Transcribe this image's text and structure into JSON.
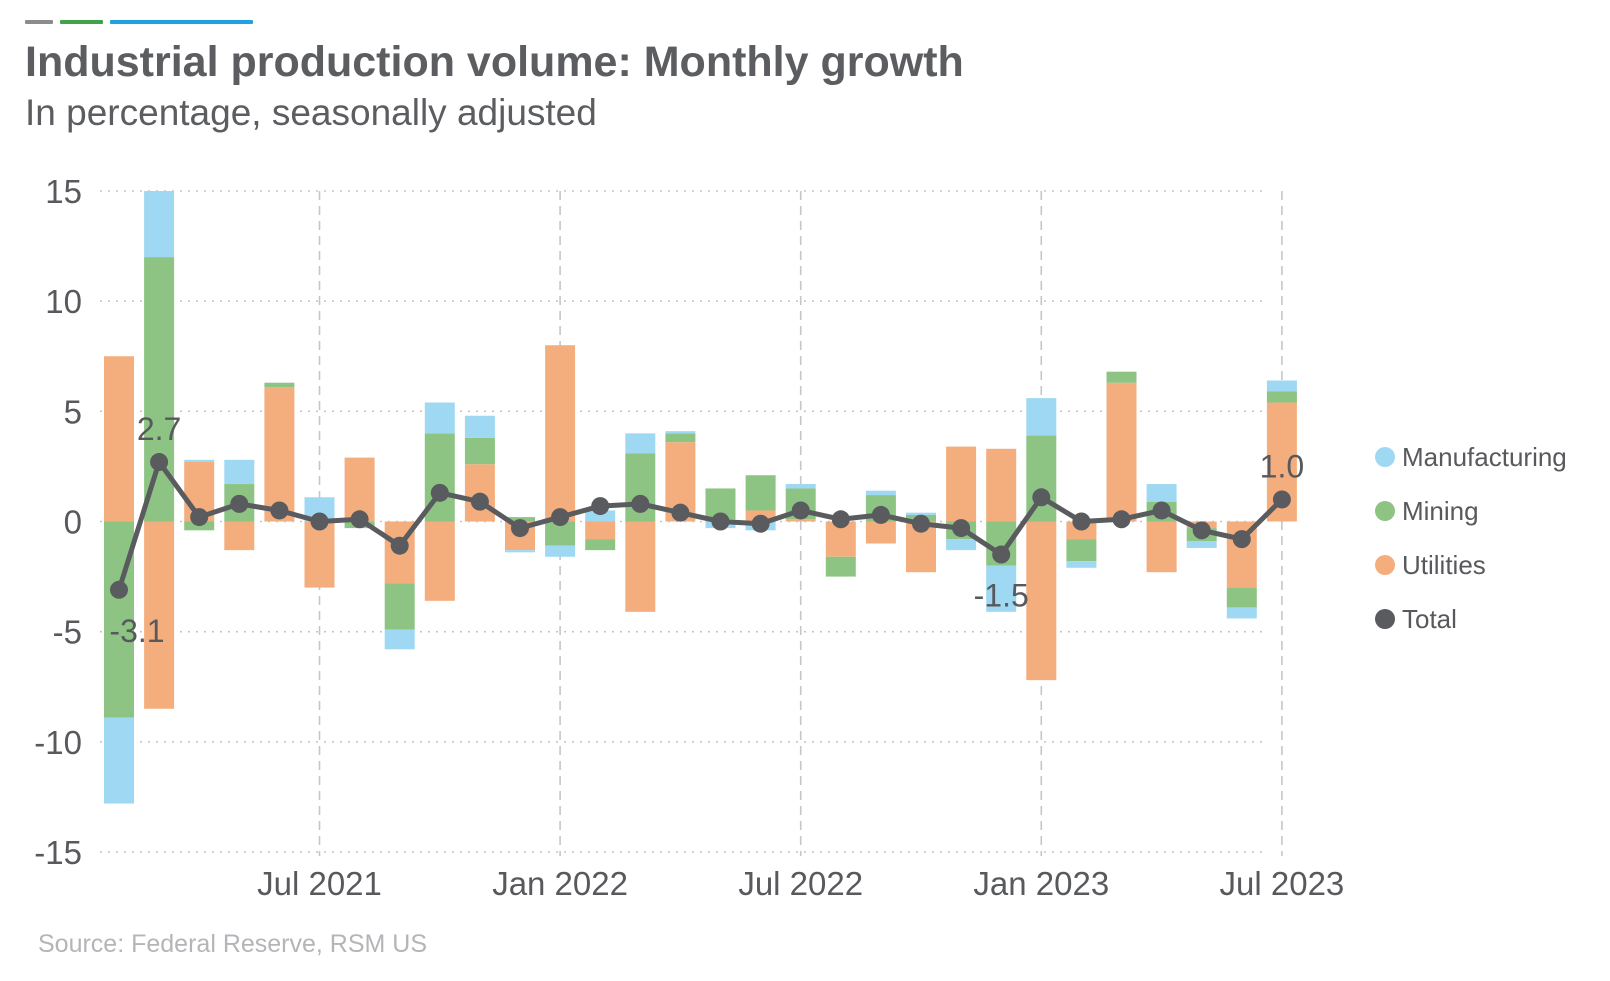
{
  "header": {
    "title": "Industrial production volume: Monthly growth",
    "subtitle": "In percentage, seasonally adjusted",
    "accent_colors": [
      "#8c8c8c",
      "#3ea34a",
      "#1fa2e0"
    ]
  },
  "source": "Source: Federal Reserve, RSM US",
  "chart_data": {
    "type": "bar",
    "stacked": true,
    "title": "Industrial production volume: Monthly growth",
    "subtitle": "In percentage, seasonally adjusted",
    "months": [
      "2021-02",
      "2021-03",
      "2021-04",
      "2021-05",
      "2021-06",
      "2021-07",
      "2021-08",
      "2021-09",
      "2021-10",
      "2021-11",
      "2021-12",
      "2022-01",
      "2022-02",
      "2022-03",
      "2022-04",
      "2022-05",
      "2022-06",
      "2022-07",
      "2022-08",
      "2022-09",
      "2022-10",
      "2022-11",
      "2022-12",
      "2023-01",
      "2023-02",
      "2023-03",
      "2023-04",
      "2023-05",
      "2023-06",
      "2023-07"
    ],
    "x_ticks": [
      {
        "label": "Jul 2021",
        "month": "2021-07"
      },
      {
        "label": "Jan 2022",
        "month": "2022-01"
      },
      {
        "label": "Jul 2022",
        "month": "2022-07"
      },
      {
        "label": "Jan 2023",
        "month": "2023-01"
      },
      {
        "label": "Jul 2023",
        "month": "2023-07"
      }
    ],
    "ylim": [
      -15,
      15
    ],
    "yticks": [
      15,
      10,
      5,
      0,
      -5,
      -10,
      -15
    ],
    "grid": true,
    "legend_position": "right",
    "series": [
      {
        "name": "Utilities",
        "color": "#f4ae7e",
        "values": [
          7.5,
          -8.5,
          2.7,
          -1.3,
          6.1,
          -3.0,
          2.9,
          -2.8,
          -3.6,
          2.6,
          -1.3,
          8.0,
          -0.8,
          -4.1,
          3.6,
          0.1,
          0.5,
          0.1,
          -1.6,
          -1.0,
          -2.3,
          3.4,
          3.3,
          -7.2,
          -0.8,
          6.3,
          -2.3,
          -0.3,
          -3.0,
          5.4
        ]
      },
      {
        "name": "Mining",
        "color": "#8dc484",
        "values": [
          -8.9,
          12.0,
          -0.4,
          1.7,
          0.2,
          0.0,
          -0.3,
          -2.1,
          4.0,
          1.2,
          0.2,
          -1.1,
          -0.5,
          3.1,
          0.4,
          1.4,
          1.6,
          1.4,
          -0.9,
          1.2,
          0.3,
          -0.8,
          -2.0,
          3.9,
          -1.0,
          0.5,
          0.9,
          -0.6,
          -0.9,
          0.5
        ]
      },
      {
        "name": "Manufacturing",
        "color": "#9fd8f2",
        "values": [
          -3.9,
          3.0,
          0.1,
          1.1,
          0.0,
          1.1,
          0.0,
          -0.9,
          1.4,
          1.0,
          -0.1,
          -0.5,
          0.5,
          0.9,
          0.1,
          -0.3,
          -0.4,
          0.2,
          0.0,
          0.2,
          0.1,
          -0.5,
          -2.1,
          1.7,
          -0.3,
          0.0,
          0.8,
          -0.3,
          -0.5,
          0.5
        ]
      },
      {
        "name": "Total",
        "color": "#595b5e",
        "type": "line",
        "values": [
          -3.1,
          2.7,
          0.2,
          0.8,
          0.5,
          0.0,
          0.1,
          -1.1,
          1.3,
          0.9,
          -0.3,
          0.2,
          0.7,
          0.8,
          0.4,
          0.0,
          -0.1,
          0.5,
          0.1,
          0.3,
          -0.1,
          -0.3,
          -1.5,
          1.1,
          0.0,
          0.1,
          0.5,
          -0.4,
          -0.8,
          1.0
        ]
      }
    ],
    "annotations": [
      {
        "text": "-3.1",
        "index": 0
      },
      {
        "text": "2.7",
        "index": 1
      },
      {
        "text": "-1.5",
        "index": 22
      },
      {
        "text": "1.0",
        "index": 29
      }
    ],
    "legend": [
      {
        "name": "Manufacturing",
        "color": "#9fd8f2"
      },
      {
        "name": "Mining",
        "color": "#8dc484"
      },
      {
        "name": "Utilities",
        "color": "#f4ae7e"
      },
      {
        "name": "Total",
        "color": "#595b5e"
      }
    ]
  }
}
